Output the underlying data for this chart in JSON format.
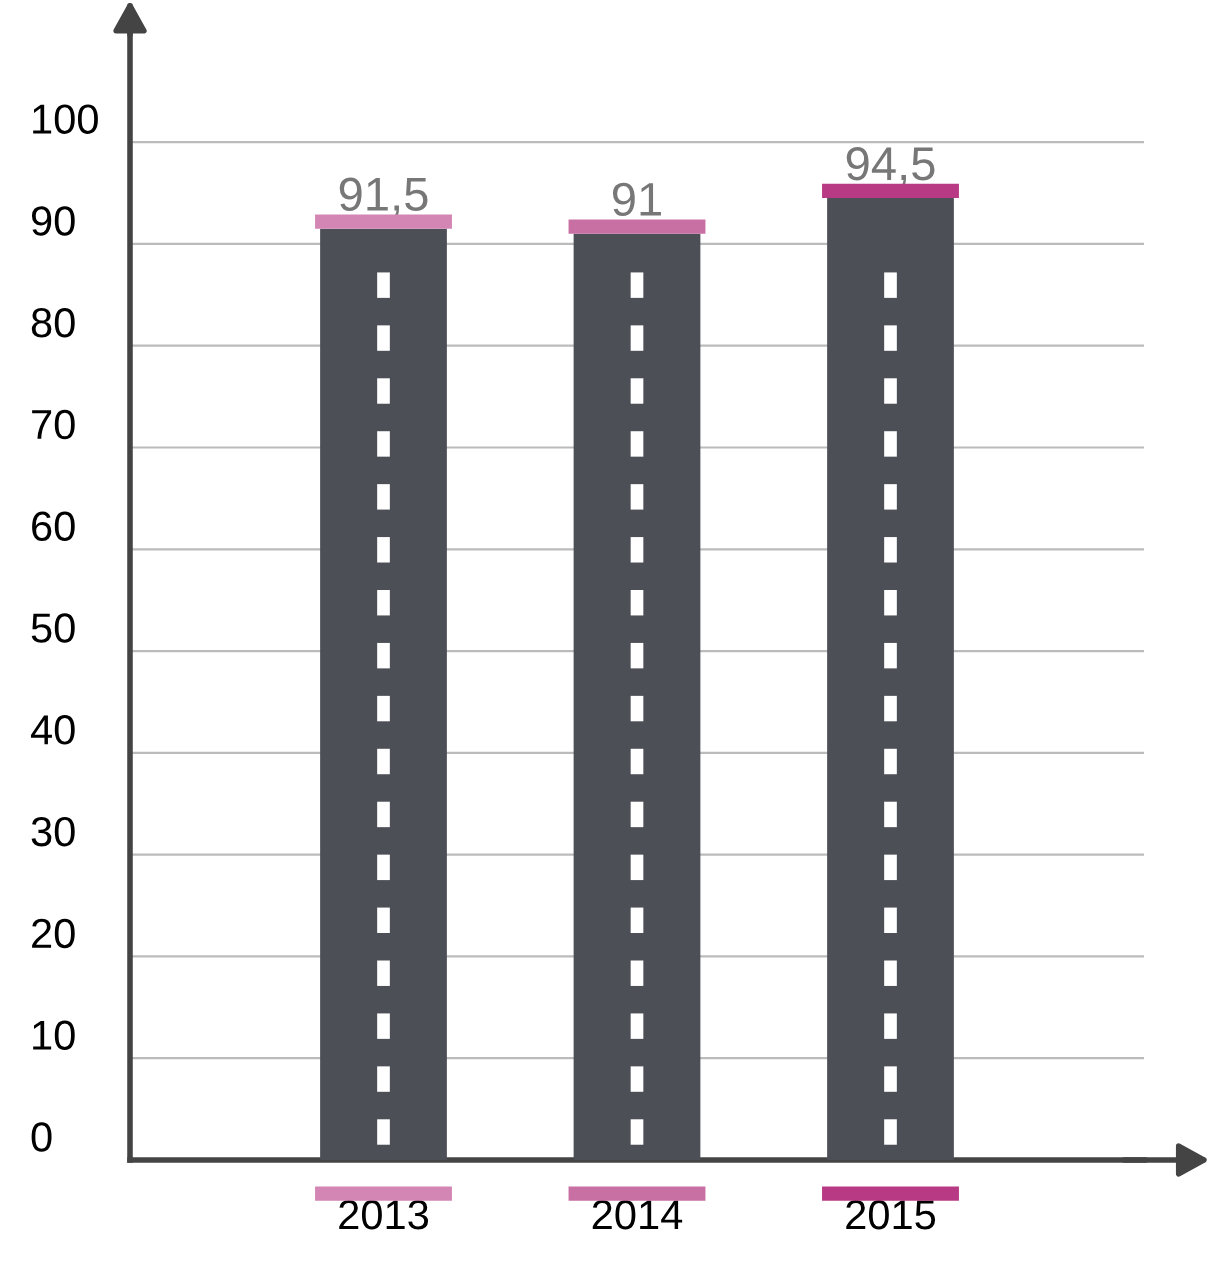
{
  "chart_data": {
    "type": "bar",
    "categories": [
      "2013",
      "2014",
      "2015"
    ],
    "values": [
      91.5,
      91,
      94.5
    ],
    "value_labels": [
      "91,5",
      "91",
      "94,5"
    ],
    "color": "#4d4f57",
    "ylim": [
      0,
      112
    ],
    "yticks": [
      0,
      10,
      20,
      30,
      40,
      50,
      60,
      70,
      80,
      90,
      100
    ],
    "grid": "y",
    "legend": false
  }
}
